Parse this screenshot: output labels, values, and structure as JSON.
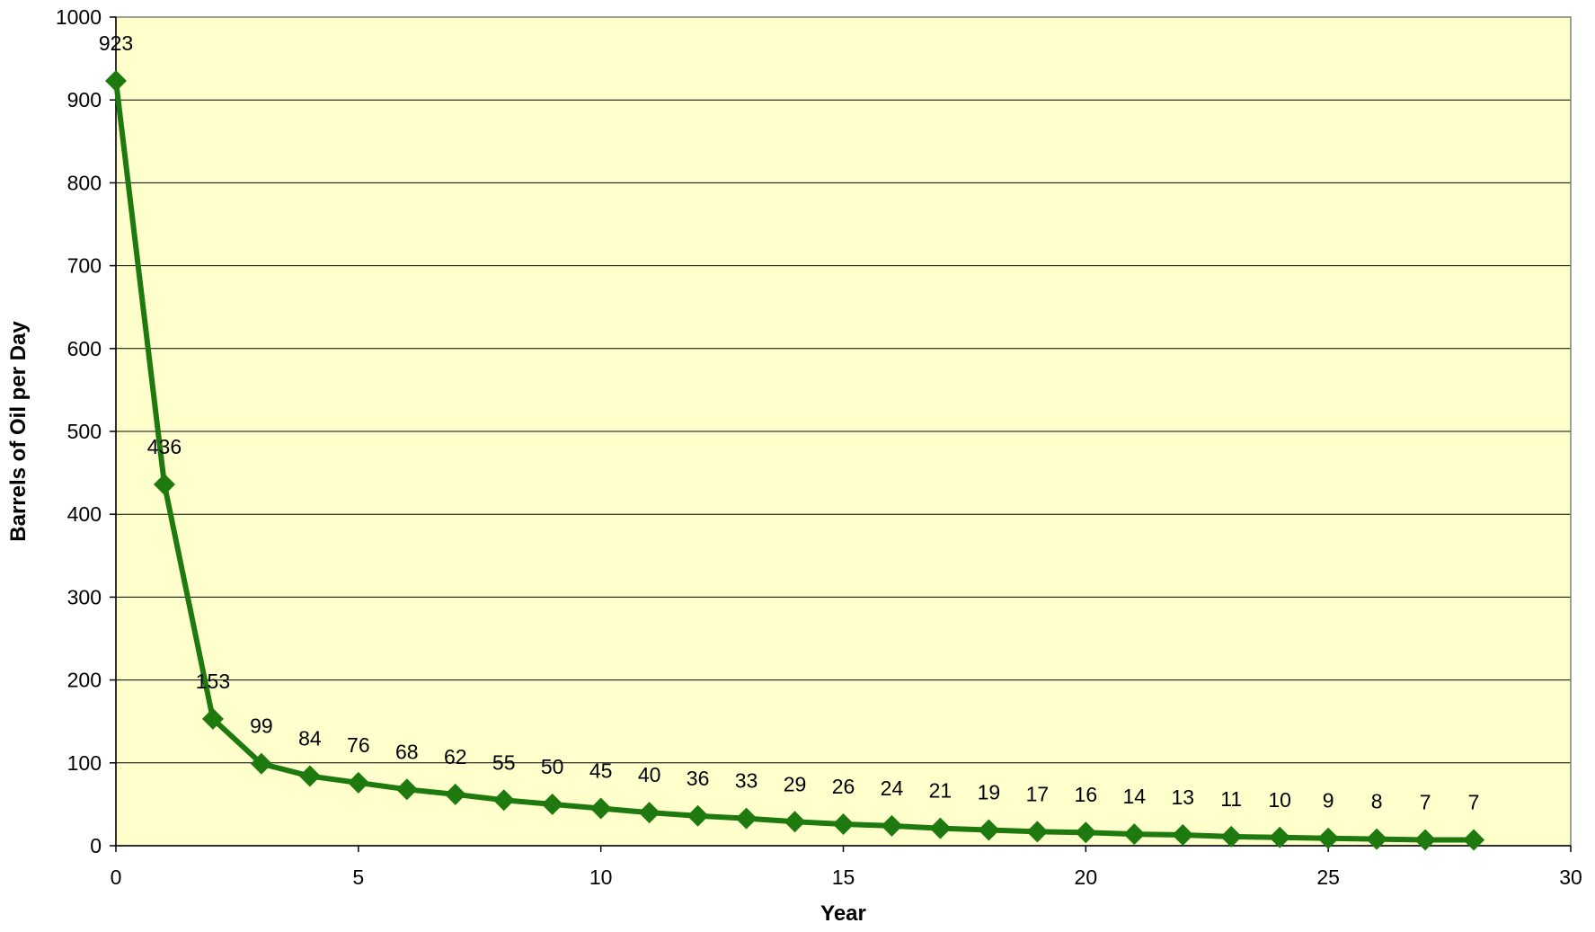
{
  "chart_data": {
    "type": "line",
    "title": "",
    "xlabel": "Year",
    "ylabel": "Barrels of Oil per Day",
    "xlim": [
      0,
      30
    ],
    "ylim": [
      0,
      1000
    ],
    "x_ticks": [
      0,
      5,
      10,
      15,
      20,
      25,
      30
    ],
    "y_ticks": [
      0,
      100,
      200,
      300,
      400,
      500,
      600,
      700,
      800,
      900,
      1000
    ],
    "grid": "horizontal",
    "legend": "none",
    "marker": "diamond",
    "data_labels": true,
    "colors": {
      "plot_background": "#FFFFCC",
      "series_line": "#1E7A0E",
      "series_marker": "#1E7A0E",
      "gridline": "#000000",
      "axis": "#000000"
    },
    "series": [
      {
        "x": [
          0,
          1,
          2,
          3,
          4,
          5,
          6,
          7,
          8,
          9,
          10,
          11,
          12,
          13,
          14,
          15,
          16,
          17,
          18,
          19,
          20,
          21,
          22,
          23,
          24,
          25,
          26,
          27,
          28
        ],
        "values": [
          923,
          436,
          153,
          99,
          84,
          76,
          68,
          62,
          55,
          50,
          45,
          40,
          36,
          33,
          29,
          26,
          24,
          21,
          19,
          17,
          16,
          14,
          13,
          11,
          10,
          9,
          8,
          7,
          7
        ]
      }
    ]
  }
}
